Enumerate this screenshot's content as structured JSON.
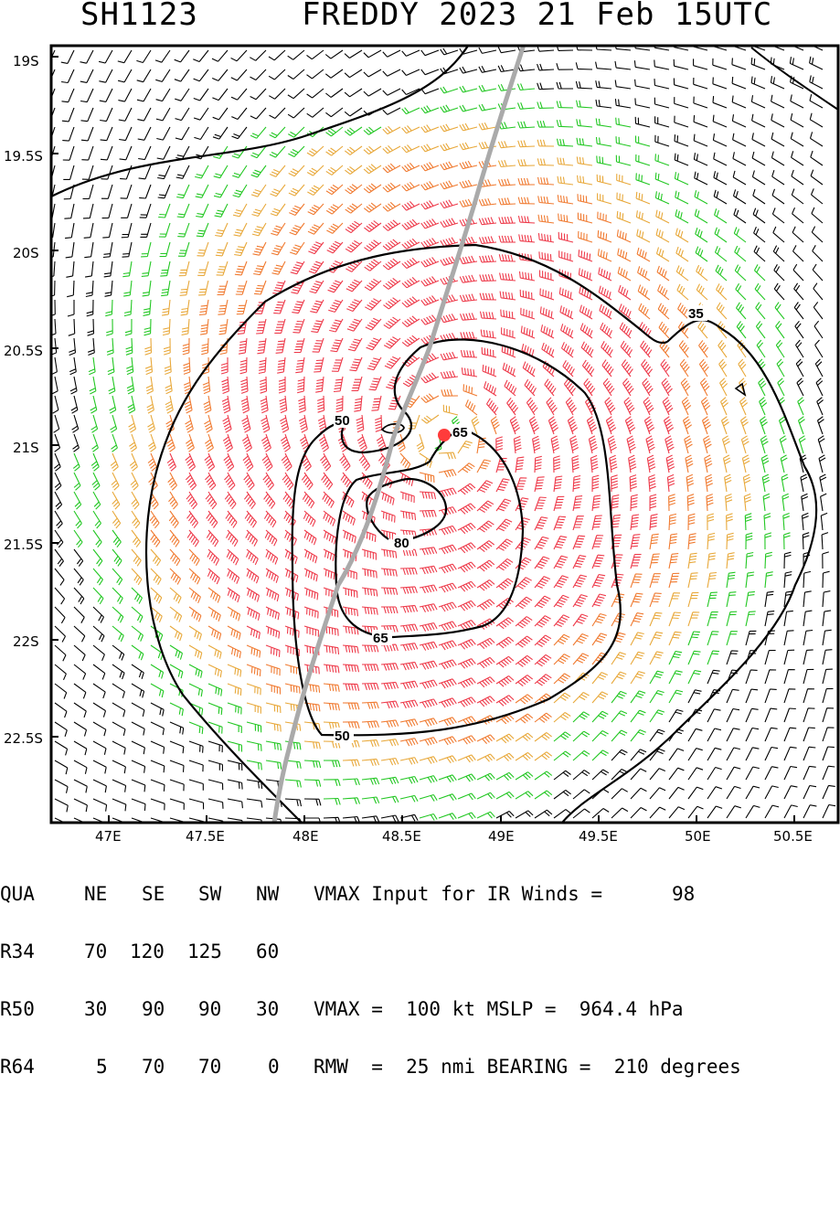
{
  "title": {
    "storm_id": "SH1123",
    "storm_info": "FREDDY 2023 21 Feb 15UTC"
  },
  "map": {
    "lat_labels": [
      "19S",
      "19.5S",
      "20S",
      "20.5S",
      "21S",
      "21.5S",
      "22S",
      "22.5S"
    ],
    "lat_values": [
      -19,
      -19.5,
      -20,
      -20.5,
      -21,
      -21.5,
      -22,
      -22.5
    ],
    "lon_labels": [
      "47E",
      "47.5E",
      "48E",
      "48.5E",
      "49E",
      "49.5E",
      "50E",
      "50.5E"
    ],
    "lon_values": [
      47,
      47.5,
      48,
      48.5,
      49,
      49.5,
      50,
      50.5
    ],
    "lat_range": [
      -22.88,
      -18.9
    ],
    "lon_range": [
      46.7,
      50.73
    ],
    "center": {
      "lat": -20.94,
      "lon": 48.7
    },
    "contour_labels": [
      "35",
      "50",
      "50",
      "65",
      "65",
      "80"
    ],
    "wind_colors": {
      "below_34kt": "#000000",
      "gale": "#22c722",
      "storm": "#e8a83a",
      "hurricane_64": "#f07a30",
      "hurricane_80": "#ee3a4a"
    },
    "track_color": "#aaaaaa",
    "center_color": "#ff3b3b"
  },
  "info": {
    "header": {
      "qua": "QUA",
      "ne": "NE",
      "se": "SE",
      "sw": "SW",
      "nw": "NW",
      "text": "VMAX Input for IR Winds =",
      "value": "98"
    },
    "r34": {
      "label": "R34",
      "ne": "70",
      "se": "120",
      "sw": "125",
      "nw": "60"
    },
    "r50": {
      "label": "R50",
      "ne": "30",
      "se": "90",
      "sw": "90",
      "nw": "30",
      "text": "VMAX =  100 kt MSLP =  964.4 hPa"
    },
    "r64": {
      "label": "R64",
      "ne": "5",
      "se": "70",
      "sw": "70",
      "nw": "0",
      "text": "RMW  =  25 nmi BEARING =  210 degrees"
    }
  }
}
